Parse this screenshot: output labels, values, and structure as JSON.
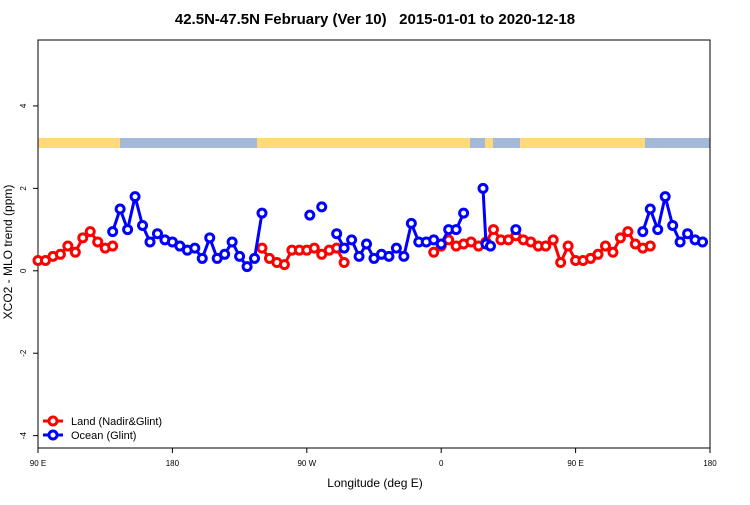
{
  "chart_data": {
    "type": "line",
    "title": "42.5N-47.5N February (Ver 10)   2015-01-01 to 2020-12-18",
    "x_label": "Longitude (deg E)",
    "y_label": "XCO2 - MLO trend (ppm)",
    "xlim": [
      90,
      540
    ],
    "xticks": [
      {
        "value": 90,
        "label": "90 E"
      },
      {
        "value": 180,
        "label": "180"
      },
      {
        "value": 270,
        "label": "90 W"
      },
      {
        "value": 360,
        "label": "0"
      },
      {
        "value": 450,
        "label": "90 E"
      },
      {
        "value": 540,
        "label": "180"
      }
    ],
    "ylim": [
      -4.3,
      5.6
    ],
    "yticks": [
      -4,
      -2,
      0,
      2,
      4
    ],
    "legend": "bottom-left",
    "series": [
      {
        "name": "Land (Nadir&Glint)",
        "color": "#ff0000",
        "x": [
          90,
          95,
          100,
          105,
          110,
          115,
          120,
          125,
          130,
          135,
          140,
          145,
          240,
          245,
          250,
          255,
          260,
          265,
          270,
          275,
          280,
          285,
          290,
          295,
          330,
          355,
          360,
          365,
          370,
          375,
          380,
          385,
          390,
          395,
          400,
          405,
          410,
          415,
          420,
          425,
          430,
          435,
          440,
          445,
          450,
          455,
          460,
          465,
          470,
          475,
          480,
          485,
          490,
          495,
          500
        ],
        "values": [
          0.25,
          0.25,
          0.35,
          0.4,
          0.6,
          0.45,
          0.8,
          0.95,
          0.7,
          0.55,
          0.6,
          null,
          0.55,
          0.3,
          0.2,
          0.15,
          0.5,
          0.5,
          0.5,
          0.55,
          0.4,
          0.5,
          0.55,
          0.2,
          null,
          0.45,
          0.6,
          0.75,
          0.6,
          0.65,
          0.7,
          0.6,
          0.7,
          1.0,
          0.75,
          0.75,
          0.85,
          0.75,
          0.7,
          0.6,
          0.6,
          0.75,
          0.2,
          0.6,
          0.25,
          0.25,
          0.3,
          0.4,
          0.6,
          0.45,
          0.8,
          0.95,
          0.65,
          0.55,
          0.6
        ]
      },
      {
        "name": "Ocean (Glint)",
        "color": "#0000ff",
        "x": [
          140,
          145,
          150,
          155,
          160,
          165,
          170,
          175,
          180,
          185,
          190,
          195,
          200,
          205,
          210,
          215,
          220,
          225,
          230,
          235,
          240,
          250,
          272,
          276,
          280,
          285,
          290,
          295,
          300,
          305,
          310,
          315,
          320,
          325,
          330,
          335,
          340,
          345,
          350,
          355,
          360,
          365,
          370,
          375,
          380,
          388,
          390,
          393,
          400,
          410,
          420,
          495,
          500,
          505,
          510,
          515,
          520,
          525,
          530,
          535
        ],
        "values": [
          0.95,
          1.5,
          1.0,
          1.8,
          1.1,
          0.7,
          0.9,
          0.75,
          0.7,
          0.6,
          0.5,
          0.55,
          0.3,
          0.8,
          0.3,
          0.4,
          0.7,
          0.35,
          0.1,
          0.3,
          1.4,
          null,
          1.35,
          null,
          1.55,
          null,
          0.9,
          0.55,
          0.75,
          0.35,
          0.65,
          0.3,
          0.4,
          0.35,
          0.55,
          0.35,
          1.15,
          0.7,
          0.7,
          0.75,
          0.65,
          1.0,
          1.0,
          1.4,
          null,
          2.0,
          0.65,
          0.6,
          null,
          1.0,
          null,
          0.95,
          1.5,
          1.0,
          1.8,
          1.1,
          0.7,
          0.9,
          0.75,
          0.7
        ]
      }
    ]
  }
}
